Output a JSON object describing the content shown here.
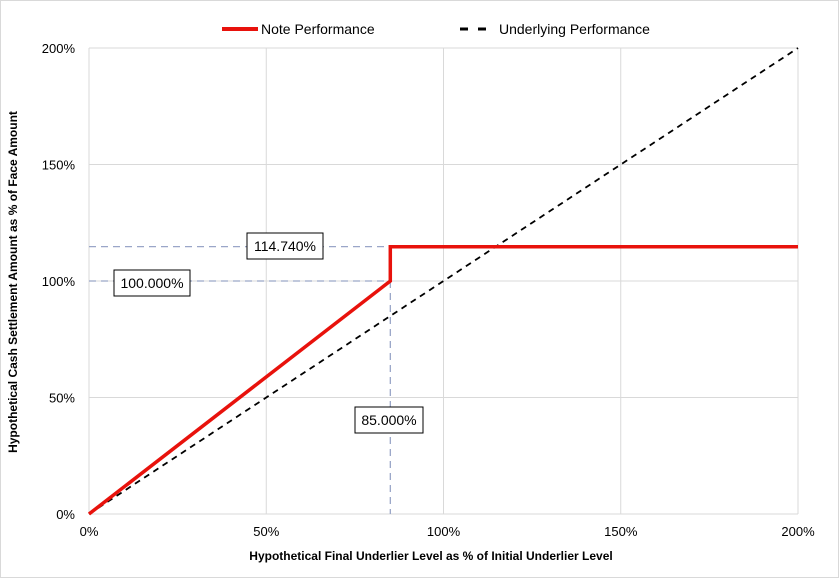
{
  "chart_data": {
    "type": "line",
    "xlabel": "Hypothetical Final Underlier Level as % of Initial Underlier Level",
    "ylabel": "Hypothetical Cash Settlement Amount as % of Face Amount",
    "xlim": [
      0,
      200
    ],
    "ylim": [
      0,
      200
    ],
    "x_ticks": [
      0,
      50,
      100,
      150,
      200
    ],
    "x_tick_labels": [
      "0%",
      "50%",
      "100%",
      "150%",
      "200%"
    ],
    "y_ticks": [
      0,
      50,
      100,
      150,
      200
    ],
    "y_tick_labels": [
      "0%",
      "50%",
      "100%",
      "150%",
      "200%"
    ],
    "grid": true,
    "legend_position": "top-center",
    "series": [
      {
        "name": "Note Performance",
        "color": "#e8120c",
        "style": "solid",
        "points": [
          [
            0,
            0
          ],
          [
            85,
            100
          ],
          [
            85,
            114.74
          ],
          [
            200,
            114.74
          ]
        ]
      },
      {
        "name": "Underlying Performance",
        "color": "#000000",
        "style": "dashed",
        "points": [
          [
            0,
            0
          ],
          [
            200,
            200
          ]
        ]
      }
    ],
    "annotations": [
      {
        "text": "114.740%",
        "x": 85,
        "y": 114.74
      },
      {
        "text": "100.000%",
        "x": 85,
        "y": 100
      },
      {
        "text": "85.000%",
        "x": 85,
        "y": 0
      }
    ]
  }
}
